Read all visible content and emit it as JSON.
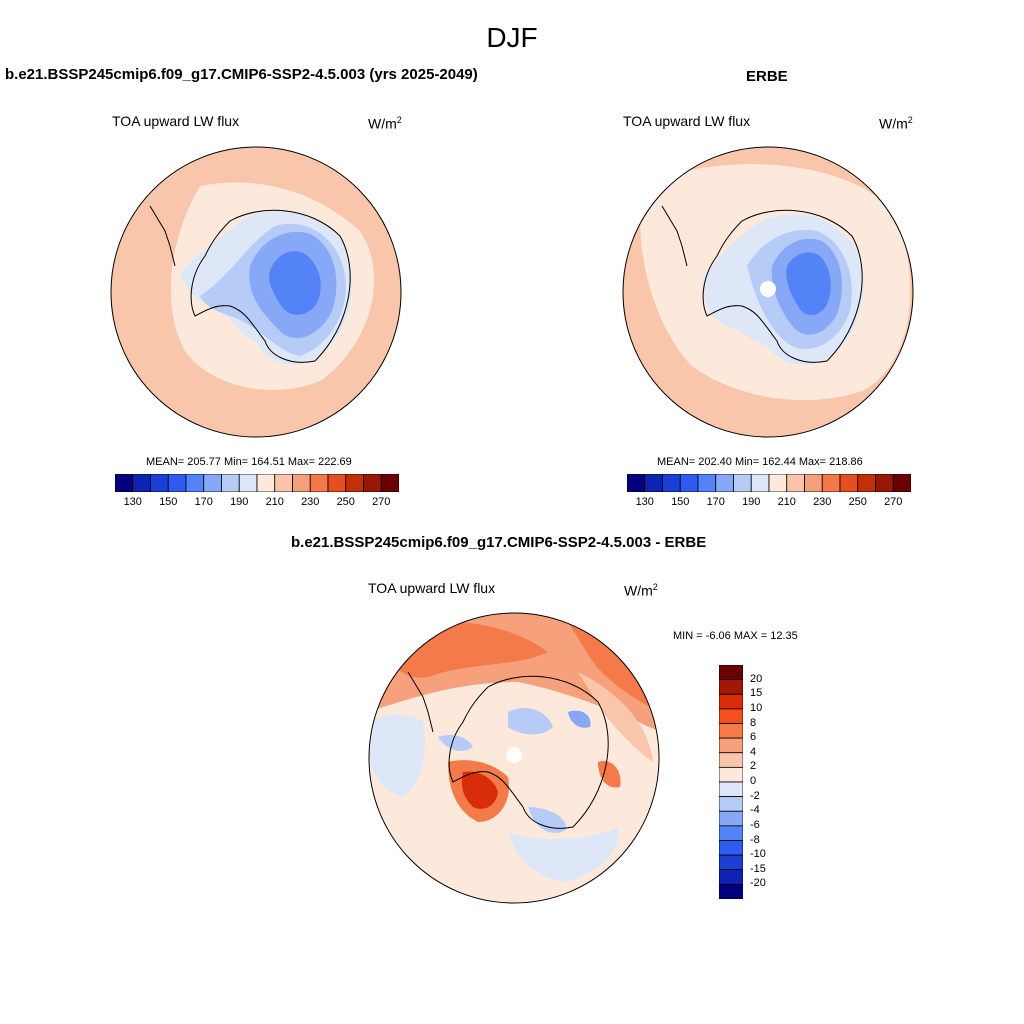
{
  "title": "DJF",
  "panels": [
    {
      "title": "b.e21.BSSP245cmip6.f09_g17.CMIP6-SSP2-4.5.003 (yrs 2025-2049)",
      "variable": "TOA upward LW flux",
      "unit": "W/m",
      "unit_sup": "2",
      "stats": "MEAN= 205.77  Min= 164.51  Max= 222.69"
    },
    {
      "title": "ERBE",
      "variable": "TOA upward LW flux",
      "unit": "W/m",
      "unit_sup": "2",
      "stats": "MEAN= 202.40  Min= 162.44  Max= 218.86"
    },
    {
      "title": "b.e21.BSSP245cmip6.f09_g17.CMIP6-SSP2-4.5.003 - ERBE",
      "variable": "TOA upward LW flux",
      "unit": "W/m",
      "unit_sup": "2",
      "stats": "MIN =  -6.06 MAX =  12.35"
    }
  ],
  "colorbar_abs": {
    "colors": [
      "#00007f",
      "#0e23b4",
      "#1b3fd6",
      "#2e5cf0",
      "#5482f7",
      "#86a8f7",
      "#b7cbf7",
      "#dde7f8",
      "#fde9dc",
      "#f9c4aa",
      "#f4a07a",
      "#f3784a",
      "#e64e20",
      "#c52e0a",
      "#9a1705",
      "#6b0000"
    ],
    "labels": [
      "130",
      "150",
      "170",
      "190",
      "210",
      "230",
      "250",
      "270"
    ]
  },
  "colorbar_diff": {
    "colors": [
      "#6b0000",
      "#a51705",
      "#d92d0a",
      "#f44f1d",
      "#f47a49",
      "#f7a17c",
      "#f9c5ab",
      "#fde9dc",
      "#dde7f8",
      "#b7cbf7",
      "#86a8f7",
      "#5482f7",
      "#2e5cf0",
      "#1b3fd6",
      "#0e23b4",
      "#00007f"
    ],
    "labels": [
      "20",
      "15",
      "10",
      "8",
      "6",
      "4",
      "2",
      "0",
      "-2",
      "-4",
      "-6",
      "-8",
      "-10",
      "-15",
      "-20"
    ]
  }
}
